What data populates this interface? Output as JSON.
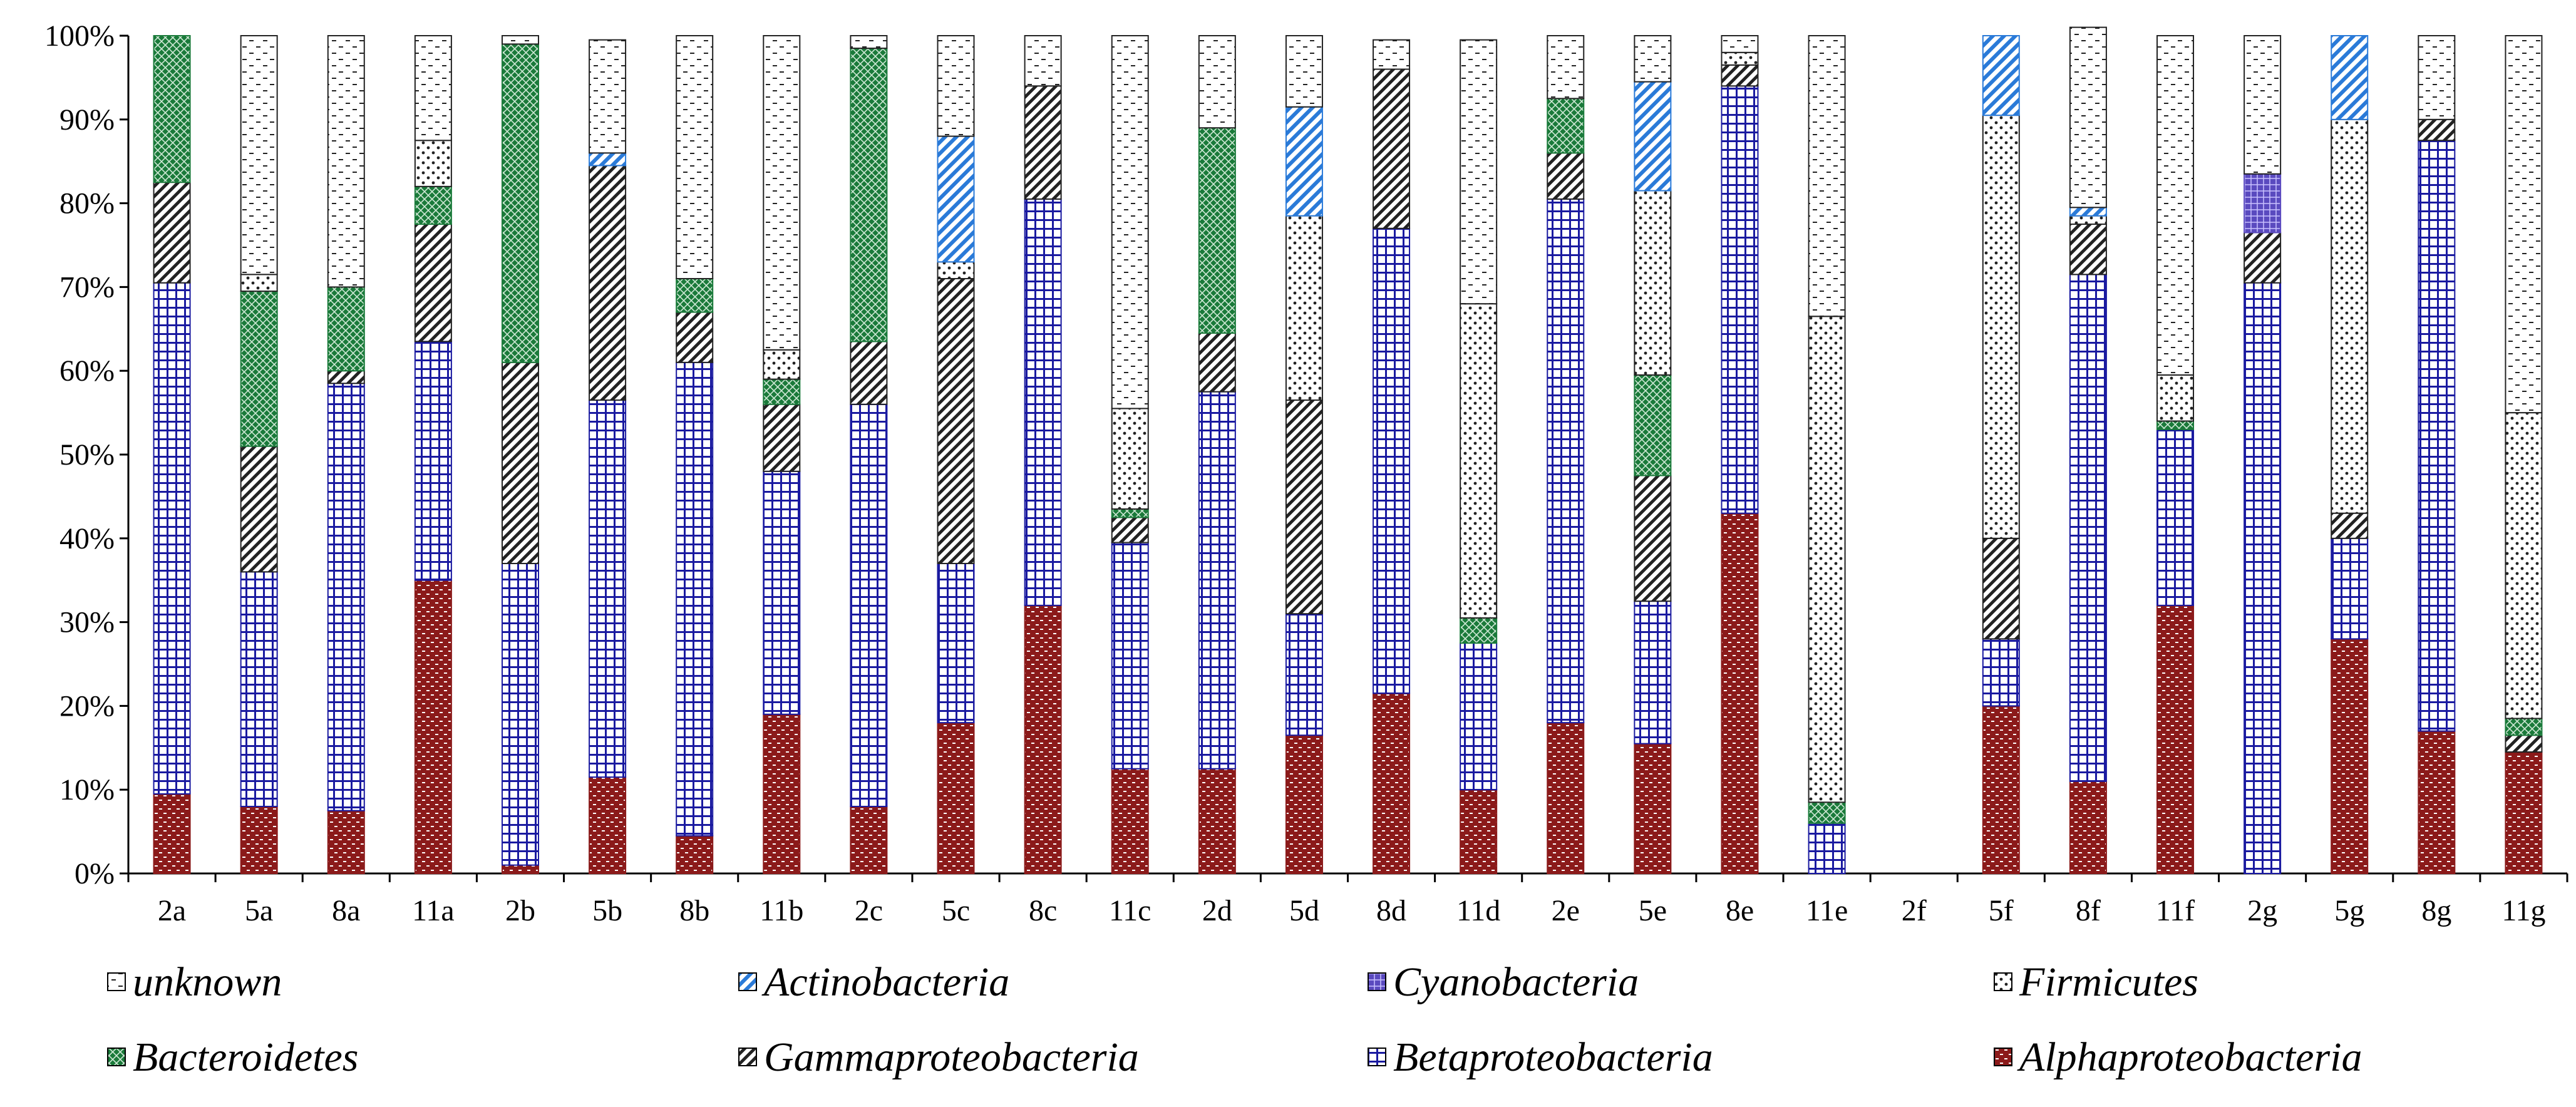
{
  "chart_data": {
    "type": "bar",
    "stacked": true,
    "title": "",
    "xlabel": "",
    "ylabel": "",
    "ylim": [
      0,
      100
    ],
    "y_ticks": [
      "0%",
      "10%",
      "20%",
      "30%",
      "40%",
      "50%",
      "60%",
      "70%",
      "80%",
      "90%",
      "100%"
    ],
    "categories": [
      "2a",
      "5a",
      "8a",
      "11a",
      "2b",
      "5b",
      "8b",
      "11b",
      "2c",
      "5c",
      "8c",
      "11c",
      "2d",
      "5d",
      "8d",
      "11d",
      "2e",
      "5e",
      "8e",
      "11e",
      "2f",
      "5f",
      "8f",
      "11f",
      "2g",
      "5g",
      "8g",
      "11g"
    ],
    "series": [
      {
        "name": "Alphaproteobacteria",
        "key": "alpha",
        "color": "#8b1a1a",
        "values": [
          9.5,
          8,
          7.5,
          35,
          1,
          11.5,
          4.5,
          19,
          8,
          18,
          32,
          12.5,
          12.5,
          16.5,
          21.5,
          10,
          18,
          15.5,
          43,
          0,
          0,
          20,
          11,
          32,
          0,
          28,
          17,
          14.5
        ]
      },
      {
        "name": "Betaproteobacteria",
        "key": "beta",
        "color": "#1a1aa0",
        "values": [
          61,
          28,
          51,
          28.5,
          36,
          45,
          56.5,
          29,
          48,
          19,
          48.5,
          27,
          45,
          14.5,
          55.5,
          17.5,
          62.5,
          17,
          51,
          6,
          0,
          8,
          60.5,
          21,
          70.5,
          12,
          70.5,
          0
        ]
      },
      {
        "name": "Gammaproteobacteria",
        "key": "gamma",
        "color": "#222222",
        "values": [
          12,
          15,
          1.5,
          14,
          24,
          28,
          6,
          8,
          7.5,
          34,
          13.5,
          3,
          7,
          25.5,
          19,
          0,
          5.5,
          15,
          2.5,
          0,
          0,
          12,
          6,
          0,
          6,
          3,
          2.5,
          2
        ]
      },
      {
        "name": "Bacteroidetes",
        "key": "bacter",
        "color": "#1a7a3a",
        "values": [
          17.5,
          18.5,
          10,
          4.5,
          38,
          0,
          4,
          3,
          35,
          0,
          0,
          1,
          24.5,
          0,
          0,
          3,
          6.5,
          12,
          0,
          2.5,
          0,
          0,
          0,
          1,
          0,
          0,
          0,
          2
        ]
      },
      {
        "name": "Firmicutes",
        "key": "firm",
        "color": "#222222",
        "values": [
          0,
          2,
          0,
          5.5,
          0,
          0,
          0,
          3.5,
          0,
          2,
          0,
          12,
          0,
          22,
          0,
          37.5,
          0,
          22,
          1.5,
          58,
          0,
          50.5,
          1,
          5.5,
          0,
          47,
          0,
          36.5
        ]
      },
      {
        "name": "Cyanobacteria",
        "key": "cyano",
        "color": "#5a4abf",
        "values": [
          0,
          0,
          0,
          0,
          0,
          0,
          0,
          0,
          0,
          0,
          0,
          0,
          0,
          0,
          0,
          0,
          0,
          0,
          0,
          0,
          0,
          0,
          0,
          0,
          7,
          0,
          0,
          0
        ]
      },
      {
        "name": "Actinobacteria",
        "key": "actino",
        "color": "#2a7ad8",
        "values": [
          0,
          0,
          0,
          0,
          0,
          1.5,
          0,
          0,
          0,
          15,
          0,
          0,
          0,
          13,
          0,
          0,
          0,
          13,
          0,
          0,
          0,
          9.5,
          1,
          0,
          0,
          10,
          0,
          0
        ]
      },
      {
        "name": "unknown",
        "key": "unknown",
        "color": "#222222",
        "values": [
          0,
          28.5,
          30,
          12.5,
          1,
          13.5,
          29,
          37.5,
          1.5,
          12,
          6,
          44.5,
          11,
          8.5,
          3.5,
          31.5,
          7.5,
          5.5,
          2,
          33.5,
          0,
          0,
          21.5,
          40.5,
          16.5,
          0,
          10,
          45
        ]
      }
    ],
    "legend": [
      [
        "unknown",
        "Actinobacteria",
        "Cyanobacteria",
        "Firmicutes"
      ],
      [
        "Bacteroidetes",
        "Gammaproteobacteria",
        "Betaproteobacteria",
        "Alphaproteobacteria"
      ]
    ],
    "legend_position": "bottom",
    "grid": false
  }
}
